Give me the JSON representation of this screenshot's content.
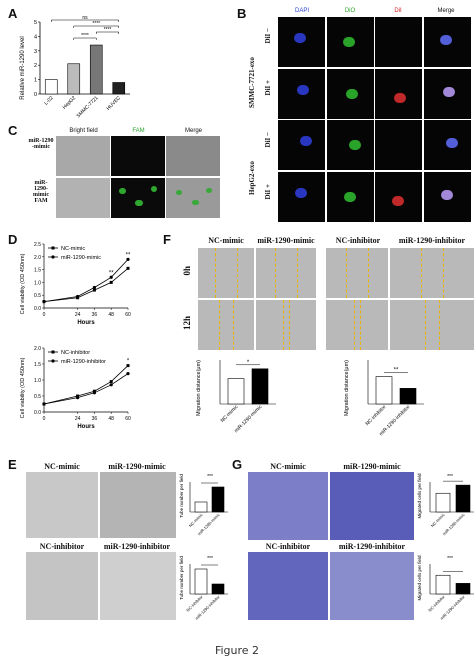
{
  "panels": {
    "A": {
      "label": "A"
    },
    "B": {
      "label": "B",
      "columns": [
        "DAPI",
        "DiO",
        "DiI",
        "Merge"
      ],
      "rows": [
        "DiI −",
        "DiI +",
        "DiI −",
        "DiI +"
      ],
      "groups": [
        "SMMC-7721-exo",
        "HepG2-exo"
      ]
    },
    "C": {
      "label": "C",
      "columns": [
        "Bright field",
        "FAM",
        "Merge"
      ],
      "rows": [
        "miR-1290 -mimic",
        "miR-1290-mimic FAM"
      ]
    },
    "D": {
      "label": "D"
    },
    "E": {
      "label": "E",
      "top": [
        "NC-mimic",
        "miR-1290-mimic"
      ],
      "bottom": [
        "NC-inhibitor",
        "miR-1290-inhibitor"
      ],
      "ylabel": "Tube number per field",
      "sig": "***"
    },
    "F": {
      "label": "F",
      "left": [
        "NC-mimic",
        "miR-1290-mimic"
      ],
      "right": [
        "NC-inhibitor",
        "miR-1290-inhibitor"
      ],
      "rows": [
        "0h",
        "12h"
      ],
      "ylabel": "Migration distance(μm)"
    },
    "G": {
      "label": "G",
      "top": [
        "NC-mimic",
        "miR-1290-mimic"
      ],
      "bottom": [
        "NC-inhibitor",
        "miR-1290-inhibitor"
      ],
      "ylabel": "Migrated cells per field",
      "sig": "***"
    }
  },
  "caption": "Figure 2",
  "chart_data": [
    {
      "type": "bar",
      "panel": "A",
      "categories": [
        "L-02",
        "HepG2",
        "SMMC-7721",
        "HUVEC"
      ],
      "values": [
        1.0,
        2.1,
        3.4,
        0.8
      ],
      "ylabel": "Relative miR-1290 level",
      "ylim": [
        0,
        5
      ],
      "yticks": [
        "0",
        "1",
        "2",
        "3",
        "4",
        "5"
      ],
      "annotations": [
        "ns",
        "****",
        "****",
        "****"
      ]
    },
    {
      "type": "line",
      "panel": "D-top",
      "x": [
        0,
        24,
        36,
        48,
        60
      ],
      "xlabel": "Hours",
      "ylabel": "Cell viability (OD 450nm)",
      "ylim": [
        0,
        2.5
      ],
      "yticks": [
        "0.0",
        "0.5",
        "1.0",
        "1.5",
        "2.0",
        "2.5"
      ],
      "series": [
        {
          "name": "NC-mimic",
          "values": [
            0.25,
            0.4,
            0.7,
            1.0,
            1.55
          ]
        },
        {
          "name": "miR-1290-mimic",
          "values": [
            0.25,
            0.45,
            0.8,
            1.2,
            1.9
          ]
        }
      ],
      "annotations": [
        "**",
        "**"
      ]
    },
    {
      "type": "line",
      "panel": "D-bottom",
      "x": [
        0,
        24,
        36,
        48,
        60
      ],
      "xlabel": "Hours",
      "ylabel": "Cell viability (OD 450nm)",
      "ylim": [
        0,
        2.0
      ],
      "yticks": [
        "0.0",
        "0.5",
        "1.0",
        "1.5",
        "2.0"
      ],
      "series": [
        {
          "name": "NC-inhibitor",
          "values": [
            0.25,
            0.5,
            0.65,
            0.95,
            1.45
          ]
        },
        {
          "name": "miR-1290-inhibitor",
          "values": [
            0.25,
            0.45,
            0.6,
            0.85,
            1.2
          ]
        }
      ],
      "annotations": [
        "*"
      ]
    },
    {
      "type": "bar",
      "panel": "E-top",
      "categories": [
        "NC-mimic",
        "miR-1290-mimic"
      ],
      "values": [
        10,
        25
      ]
    },
    {
      "type": "bar",
      "panel": "E-bottom",
      "categories": [
        "NC-inhibitor",
        "miR-1290-inhibitor"
      ],
      "values": [
        25,
        10
      ]
    },
    {
      "type": "bar",
      "panel": "F-left",
      "categories": [
        "NC-mimic",
        "miR-1290-mimic"
      ],
      "values": [
        260,
        360
      ],
      "annotations": [
        "*"
      ]
    },
    {
      "type": "bar",
      "panel": "F-right",
      "categories": [
        "NC-inhibitor",
        "miR-1290-inhibitor"
      ],
      "values": [
        280,
        160
      ],
      "annotations": [
        "**"
      ]
    },
    {
      "type": "bar",
      "panel": "G-top",
      "categories": [
        "NC-mimic",
        "miR-1290-mimic"
      ],
      "values": [
        300,
        430
      ]
    },
    {
      "type": "bar",
      "panel": "G-bottom",
      "categories": [
        "NC-inhibitor",
        "miR-1290-inhibitor"
      ],
      "values": [
        300,
        170
      ]
    }
  ]
}
